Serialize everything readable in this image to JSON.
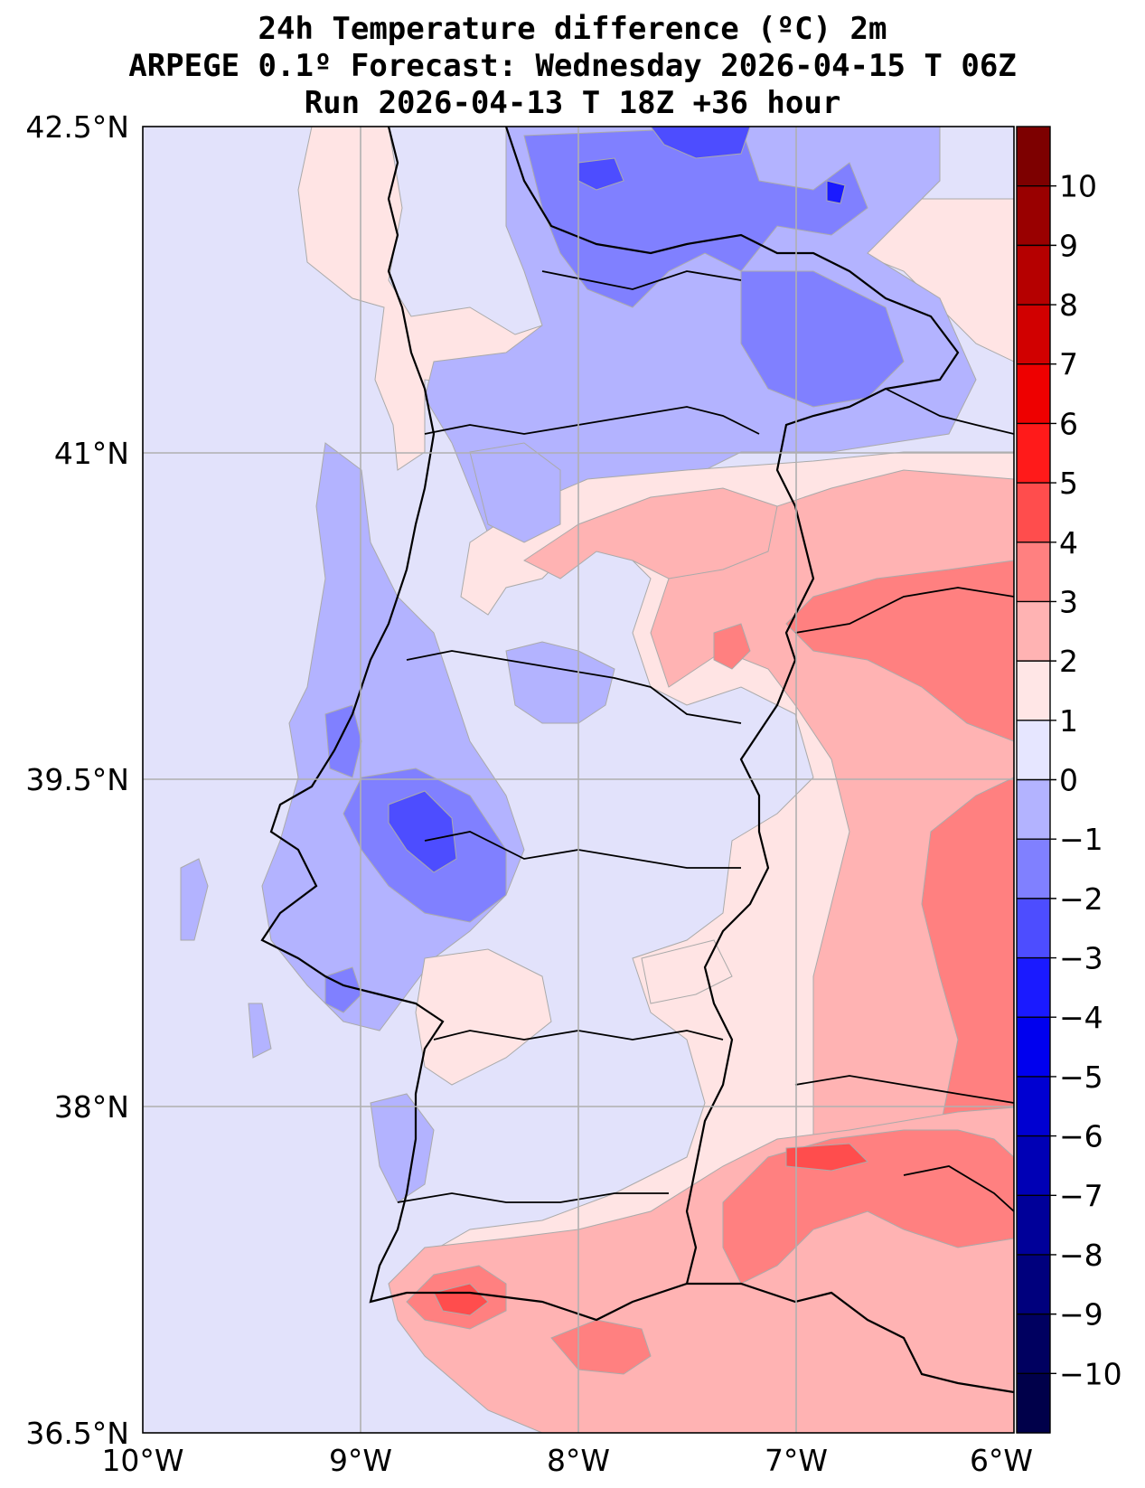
{
  "title": {
    "line1": "24h Temperature difference (ºC) 2m",
    "line2": "ARPEGE 0.1º Forecast: Wednesday 2026-04-15 T 06Z",
    "line3": "Run 2026-04-13 T 18Z +36 hour"
  },
  "map": {
    "lon_range": [
      -10,
      -6
    ],
    "lat_range": [
      36.5,
      42.5
    ],
    "lon_ticks": [
      -10,
      -9,
      -8,
      -7,
      -6
    ],
    "lat_ticks": [
      36.5,
      38,
      39.5,
      41,
      42.5
    ],
    "lon_tick_labels": [
      "10°W",
      "9°W",
      "8°W",
      "7°W",
      "6°W"
    ],
    "lat_tick_labels": [
      "36.5°N",
      "38°N",
      "39.5°N",
      "41°N",
      "42.5°N"
    ],
    "grid": true,
    "ocean_color": "#e2e2fb"
  },
  "colorbar": {
    "levels": [
      -11,
      -10,
      -9,
      -8,
      -7,
      -6,
      -5,
      -4,
      -3,
      -2,
      -1,
      0,
      1,
      2,
      3,
      4,
      5,
      6,
      7,
      8,
      9,
      10,
      11
    ],
    "tick_values": [
      10,
      9,
      8,
      7,
      6,
      5,
      4,
      3,
      2,
      1,
      0,
      -1,
      -2,
      -3,
      -4,
      -5,
      -6,
      -7,
      -8,
      -9,
      -10
    ],
    "tick_labels": [
      "10",
      "9",
      "8",
      "7",
      "6",
      "5",
      "4",
      "3",
      "2",
      "1",
      "0",
      "−1",
      "−2",
      "−3",
      "−4",
      "−5",
      "−6",
      "−7",
      "−8",
      "−9",
      "−10"
    ],
    "colors_top_to_bottom": [
      "#7d0000",
      "#990000",
      "#b50000",
      "#d10000",
      "#ee0000",
      "#ff1a1a",
      "#ff4d4d",
      "#ff8080",
      "#ffb3b3",
      "#ffe6e6",
      "#e6e6ff",
      "#b3b3ff",
      "#8080ff",
      "#4d4dff",
      "#1a1aff",
      "#0000ee",
      "#0000d1",
      "#0000b5",
      "#000099",
      "#00007d",
      "#000060",
      "#00004a"
    ]
  }
}
